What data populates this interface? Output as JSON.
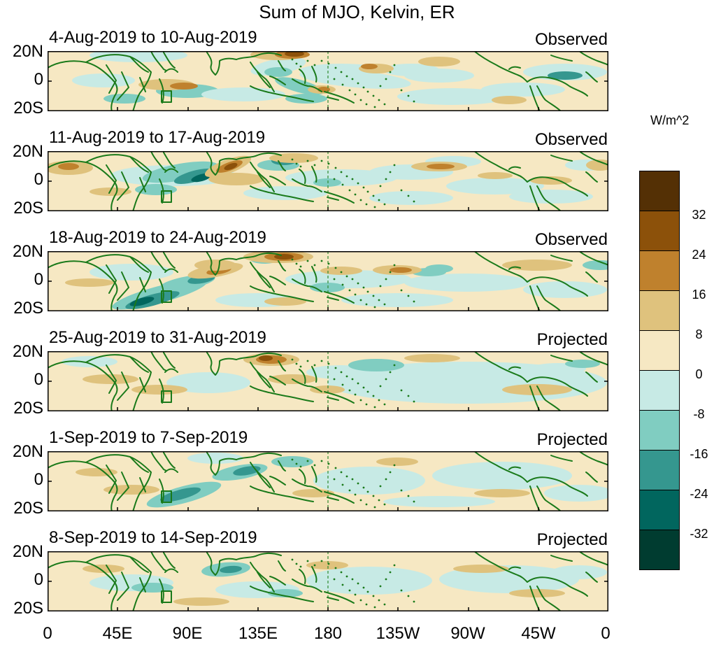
{
  "title": "Sum of MJO, Kelvin, ER",
  "lat_labels": [
    "20N",
    "0",
    "20S"
  ],
  "lon_labels": [
    "0",
    "45E",
    "90E",
    "135E",
    "180",
    "135W",
    "90W",
    "45W",
    "0"
  ],
  "panels": [
    {
      "date": "4-Aug-2019 to 10-Aug-2019",
      "status": "Observed"
    },
    {
      "date": "11-Aug-2019 to 17-Aug-2019",
      "status": "Observed"
    },
    {
      "date": "18-Aug-2019 to 24-Aug-2019",
      "status": "Observed"
    },
    {
      "date": "25-Aug-2019 to 31-Aug-2019",
      "status": "Projected"
    },
    {
      "date": "1-Sep-2019 to 7-Sep-2019",
      "status": "Projected"
    },
    {
      "date": "8-Sep-2019 to 14-Sep-2019",
      "status": "Projected"
    }
  ],
  "colorbar": {
    "unit": "W/m^2",
    "labels": [
      "32",
      "24",
      "16",
      "8",
      "0",
      "-8",
      "-16",
      "-24",
      "-32"
    ],
    "colors": [
      "#543005",
      "#8c510a",
      "#bf812d",
      "#dfc27d",
      "#f6e8c3",
      "#c7eae5",
      "#80cdc1",
      "#35978f",
      "#01665e",
      "#003c30"
    ]
  },
  "colors": {
    "coastline": "#1a7a1a",
    "dateline": "#2e8b2e",
    "background": "#f6e8c3"
  }
}
